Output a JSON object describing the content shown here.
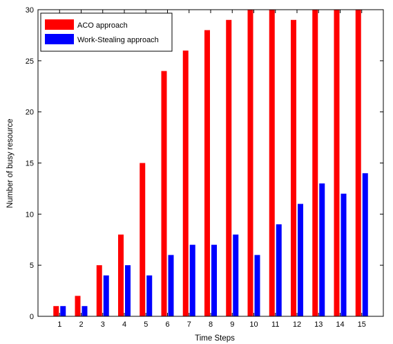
{
  "chart_data": {
    "type": "bar",
    "title": "",
    "xlabel": "Time Steps",
    "ylabel": "Number of busy resource",
    "categories": [
      "1",
      "2",
      "3",
      "4",
      "5",
      "6",
      "7",
      "8",
      "9",
      "10",
      "11",
      "12",
      "13",
      "14",
      "15"
    ],
    "ylim": [
      0,
      30
    ],
    "yticks": [
      0,
      5,
      10,
      15,
      20,
      25,
      30
    ],
    "grid": false,
    "legend_position": "top-left",
    "series": [
      {
        "name": "ACO approach",
        "color": "#ff0000",
        "values": [
          1,
          2,
          5,
          8,
          15,
          24,
          26,
          28,
          29,
          30,
          30,
          29,
          30,
          30,
          30
        ]
      },
      {
        "name": "Work-Stealing approach",
        "color": "#0000ff",
        "values": [
          1,
          1,
          4,
          5,
          4,
          6,
          7,
          7,
          8,
          6,
          9,
          11,
          13,
          12,
          14
        ]
      }
    ]
  }
}
